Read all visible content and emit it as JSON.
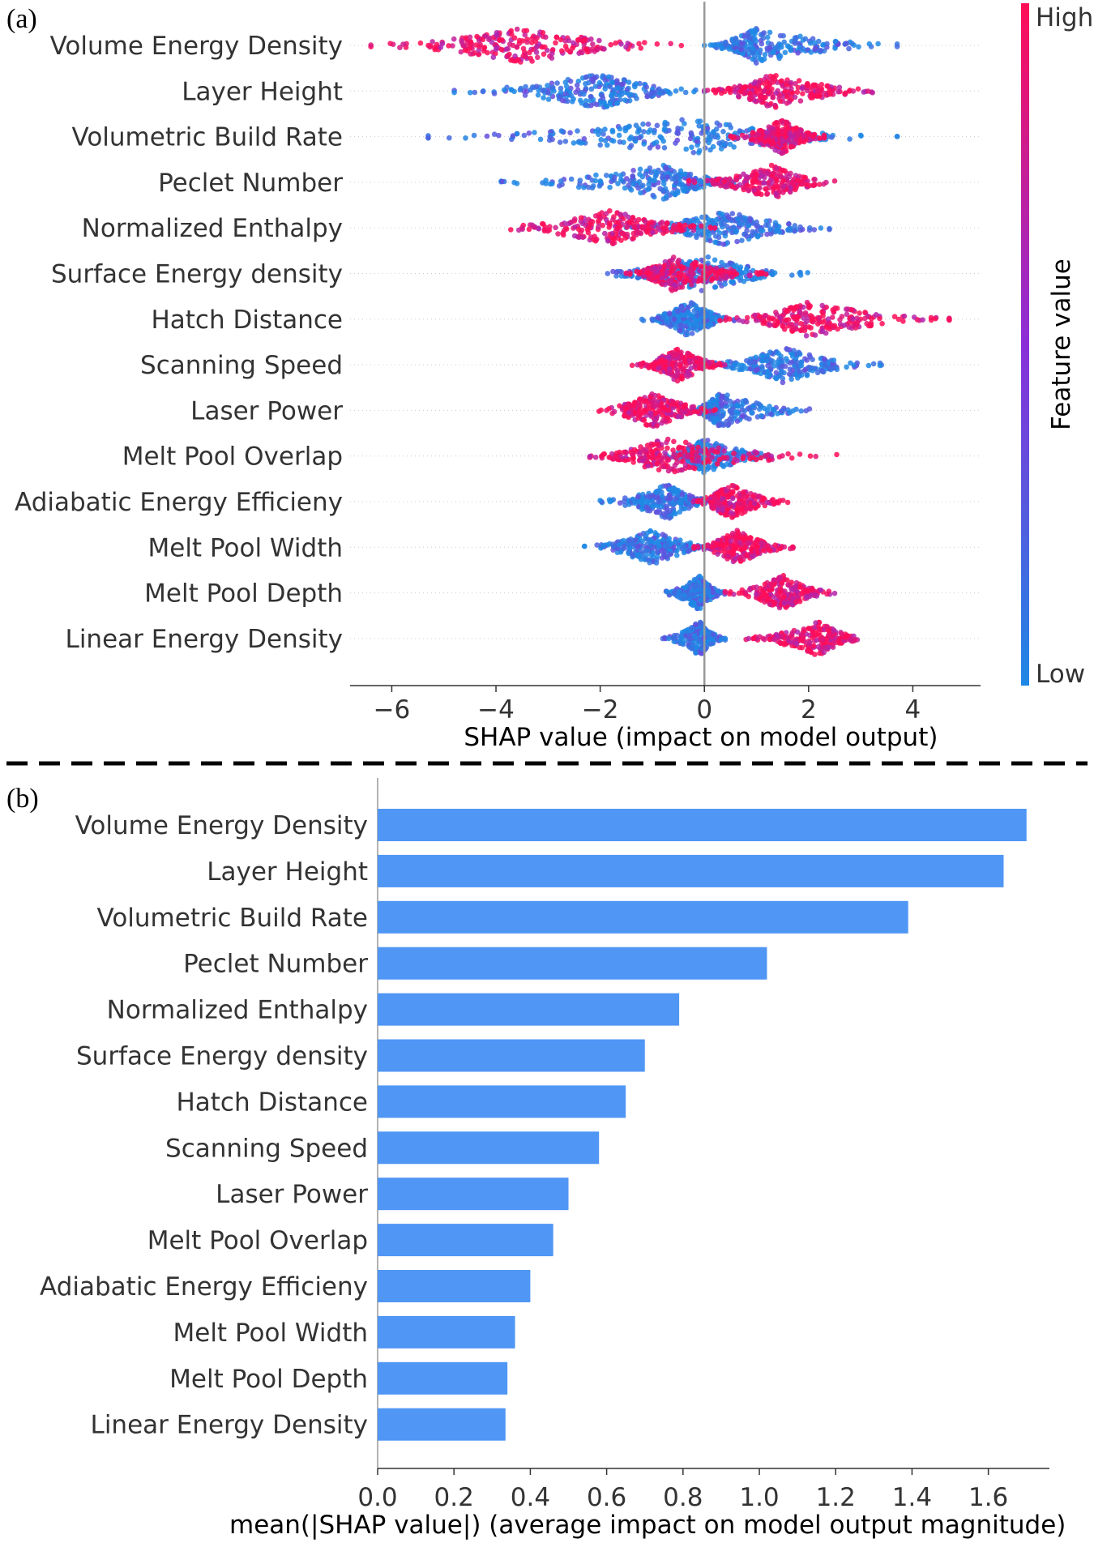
{
  "panels": {
    "a_label": "(a)",
    "b_label": "(b)"
  },
  "colorbar": {
    "high_label": "High",
    "low_label": "Low",
    "title": "Feature value",
    "high_color": "#ff0d57",
    "low_color": "#1e88e5"
  },
  "bar_color": "#4f96f5",
  "chart_data": [
    {
      "type": "scatter",
      "subtype": "beeswarm",
      "title": "",
      "xlabel": "SHAP value (impact on model output)",
      "ylabel": "",
      "xlim": [
        -6.8,
        5.3
      ],
      "xticks": [
        -6,
        -4,
        -2,
        0,
        2,
        4
      ],
      "xtick_labels": [
        "−6",
        "−4",
        "−2",
        "0",
        "2",
        "4"
      ],
      "features": [
        {
          "name": "Volume Energy Density",
          "min": -6.4,
          "max": 3.7,
          "low_center": 1.0,
          "high_center": -3.5,
          "low_min": 0.0,
          "low_max": 3.7,
          "high_min": -6.4,
          "high_max": -0.2
        },
        {
          "name": "Layer Height",
          "min": -4.8,
          "max": 3.4,
          "low_center": -2.0,
          "high_center": 1.3,
          "low_min": -4.8,
          "low_max": 0.0,
          "high_min": 0.0,
          "high_max": 3.4
        },
        {
          "name": "Volumetric Build Rate",
          "min": -5.3,
          "max": 3.7,
          "low_center": -0.3,
          "high_center": 1.5,
          "low_min": -5.3,
          "low_max": 3.7,
          "high_min": 0.5,
          "high_max": 2.3
        },
        {
          "name": "Peclet Number",
          "min": -3.9,
          "max": 2.5,
          "low_center": -0.8,
          "high_center": 1.3,
          "low_min": -3.9,
          "low_max": 0.8,
          "high_min": -0.3,
          "high_max": 2.5
        },
        {
          "name": "Normalized Enthalpy",
          "min": -4.0,
          "max": 2.4,
          "low_center": 0.4,
          "high_center": -1.8,
          "low_min": -1.5,
          "low_max": 2.4,
          "high_min": -4.0,
          "high_max": 0.2
        },
        {
          "name": "Surface Energy density",
          "min": -2.2,
          "max": 2.0,
          "low_center": 0.0,
          "high_center": -0.6,
          "low_min": -2.2,
          "low_max": 2.0,
          "high_min": -1.5,
          "high_max": 1.2
        },
        {
          "name": "Hatch Distance",
          "min": -1.2,
          "max": 4.7,
          "low_center": -0.3,
          "high_center": 2.0,
          "low_min": -1.2,
          "low_max": 0.7,
          "high_min": 0.3,
          "high_max": 4.7
        },
        {
          "name": "Scanning Speed",
          "min": -1.4,
          "max": 3.4,
          "low_center": 1.5,
          "high_center": -0.5,
          "low_min": 0.0,
          "low_max": 3.4,
          "high_min": -1.4,
          "high_max": 0.4
        },
        {
          "name": "Laser Power",
          "min": -2.1,
          "max": 2.1,
          "low_center": 0.3,
          "high_center": -1.0,
          "low_min": -0.3,
          "low_max": 2.1,
          "high_min": -2.1,
          "high_max": 0.3
        },
        {
          "name": "Melt Pool Overlap",
          "min": -2.2,
          "max": 2.7,
          "low_center": 0.0,
          "high_center": -0.8,
          "low_min": -0.8,
          "low_max": 1.5,
          "high_min": -2.2,
          "high_max": 2.7
        },
        {
          "name": "Adiabatic Energy Efficieny",
          "min": -2.0,
          "max": 1.6,
          "low_center": -0.7,
          "high_center": 0.5,
          "low_min": -2.0,
          "low_max": 0.2,
          "high_min": -0.3,
          "high_max": 1.6
        },
        {
          "name": "Melt Pool Width",
          "min": -2.3,
          "max": 1.7,
          "low_center": -1.0,
          "high_center": 0.6,
          "low_min": -2.3,
          "low_max": 0.3,
          "high_min": -0.2,
          "high_max": 1.7
        },
        {
          "name": "Melt Pool Depth",
          "min": -0.8,
          "max": 2.5,
          "low_center": -0.1,
          "high_center": 1.5,
          "low_min": -0.8,
          "low_max": 0.4,
          "high_min": 0.4,
          "high_max": 2.5
        },
        {
          "name": "Linear Energy Density",
          "min": -0.8,
          "max": 3.1,
          "low_center": -0.1,
          "high_center": 2.2,
          "low_min": -0.8,
          "low_max": 0.4,
          "high_min": 0.8,
          "high_max": 3.1
        }
      ]
    },
    {
      "type": "bar",
      "orientation": "horizontal",
      "title": "",
      "xlabel": "mean(|SHAP value|) (average impact on model output magnitude)",
      "ylabel": "",
      "xlim": [
        0,
        1.76
      ],
      "xticks": [
        0.0,
        0.2,
        0.4,
        0.6,
        0.8,
        1.0,
        1.2,
        1.4,
        1.6
      ],
      "xtick_labels": [
        "0.0",
        "0.2",
        "0.4",
        "0.6",
        "0.8",
        "1.0",
        "1.2",
        "1.4",
        "1.6"
      ],
      "categories": [
        "Volume Energy Density",
        "Layer Height",
        "Volumetric Build Rate",
        "Peclet Number",
        "Normalized Enthalpy",
        "Surface Energy density",
        "Hatch Distance",
        "Scanning Speed",
        "Laser Power",
        "Melt Pool Overlap",
        "Adiabatic Energy Efficieny",
        "Melt Pool Width",
        "Melt Pool Depth",
        "Linear Energy Density"
      ],
      "values": [
        1.7,
        1.64,
        1.39,
        1.02,
        0.79,
        0.7,
        0.65,
        0.58,
        0.5,
        0.46,
        0.4,
        0.36,
        0.34,
        0.335
      ]
    }
  ]
}
